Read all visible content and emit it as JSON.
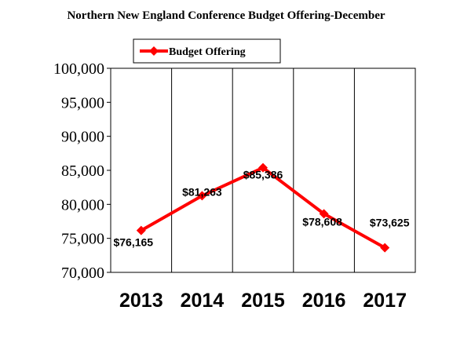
{
  "chart_data": {
    "type": "line",
    "title": "Northern New England Conference Budget Offering-December",
    "categories": [
      "2013",
      "2014",
      "2015",
      "2016",
      "2017"
    ],
    "series": [
      {
        "name": "Budget Offering",
        "values": [
          76165,
          81263,
          85386,
          78608,
          73625
        ],
        "labels": [
          "$76,165",
          "$81,263",
          "$85,386",
          "$78,608",
          "$73,625"
        ],
        "color": "#ff0000"
      }
    ],
    "yticks": [
      "70,000",
      "75,000",
      "80,000",
      "85,000",
      "90,000",
      "95,000",
      "100,000"
    ],
    "ylim": [
      70000,
      100000
    ],
    "ystep": 5000,
    "grid": "vertical lines at category boundaries",
    "legend": "top-center",
    "xlabel": "",
    "ylabel": ""
  }
}
